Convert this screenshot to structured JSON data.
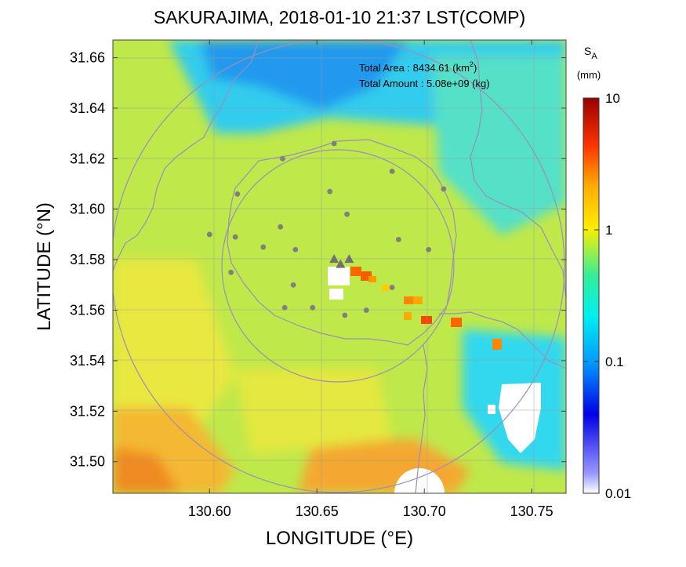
{
  "title": "SAKURAJIMA, 2018-01-10 21:37 LST(COMP)",
  "chart_data": {
    "type": "heatmap",
    "title": "SAKURAJIMA, 2018-01-10 21:37 LST(COMP)",
    "xlabel": "LONGITUDE (°E)",
    "ylabel": "LATITUDE (°N)",
    "xlim": [
      130.555,
      130.766
    ],
    "ylim": [
      31.4875,
      31.667
    ],
    "xticks": [
      "130.60",
      "130.65",
      "130.70",
      "130.75"
    ],
    "xtick_values": [
      130.6,
      130.65,
      130.7,
      130.75
    ],
    "yticks": [
      "31.50",
      "31.52",
      "31.54",
      "31.56",
      "31.58",
      "31.60",
      "31.62",
      "31.64",
      "31.66"
    ],
    "ytick_values": [
      31.5,
      31.52,
      31.54,
      31.56,
      31.58,
      31.6,
      31.62,
      31.64,
      31.66
    ],
    "grid": true,
    "annotation": {
      "area_label": "Total Area   : 8434.61 (km",
      "area_sup": "2",
      "area_close": ")",
      "amount_label": "Total Amount : 5.08e+09 (kg)"
    },
    "colorbar": {
      "label": "S",
      "label_sub": "A",
      "unit": "(mm)",
      "scale": "log",
      "range": [
        0.01,
        10
      ],
      "tick_labels": [
        "10",
        "1",
        "0.1",
        "0.01"
      ],
      "tick_values": [
        10,
        1,
        0.1,
        0.01
      ]
    },
    "vents": [
      {
        "lon": 130.658,
        "lat": 31.58
      },
      {
        "lon": 130.661,
        "lat": 31.578
      },
      {
        "lon": 130.665,
        "lat": 31.58
      }
    ],
    "stations": [
      {
        "lon": 130.658,
        "lat": 31.626
      },
      {
        "lon": 130.634,
        "lat": 31.62
      },
      {
        "lon": 130.685,
        "lat": 31.615
      },
      {
        "lon": 130.613,
        "lat": 31.606
      },
      {
        "lon": 130.656,
        "lat": 31.607
      },
      {
        "lon": 130.709,
        "lat": 31.608
      },
      {
        "lon": 130.664,
        "lat": 31.598
      },
      {
        "lon": 130.6,
        "lat": 31.59
      },
      {
        "lon": 130.612,
        "lat": 31.589
      },
      {
        "lon": 130.633,
        "lat": 31.593
      },
      {
        "lon": 130.625,
        "lat": 31.585
      },
      {
        "lon": 130.64,
        "lat": 31.584
      },
      {
        "lon": 130.688,
        "lat": 31.588
      },
      {
        "lon": 130.702,
        "lat": 31.584
      },
      {
        "lon": 130.61,
        "lat": 31.575
      },
      {
        "lon": 130.639,
        "lat": 31.57
      },
      {
        "lon": 130.635,
        "lat": 31.561
      },
      {
        "lon": 130.648,
        "lat": 31.561
      },
      {
        "lon": 130.663,
        "lat": 31.558
      },
      {
        "lon": 130.673,
        "lat": 31.56
      },
      {
        "lon": 130.685,
        "lat": 31.569
      }
    ],
    "range_rings": [
      {
        "center_lon": 130.658,
        "center_lat": 31.578,
        "radius_deg_lat": 0.046
      },
      {
        "center_lon": 130.658,
        "center_lat": 31.578,
        "radius_deg_lat": 0.09
      }
    ]
  }
}
